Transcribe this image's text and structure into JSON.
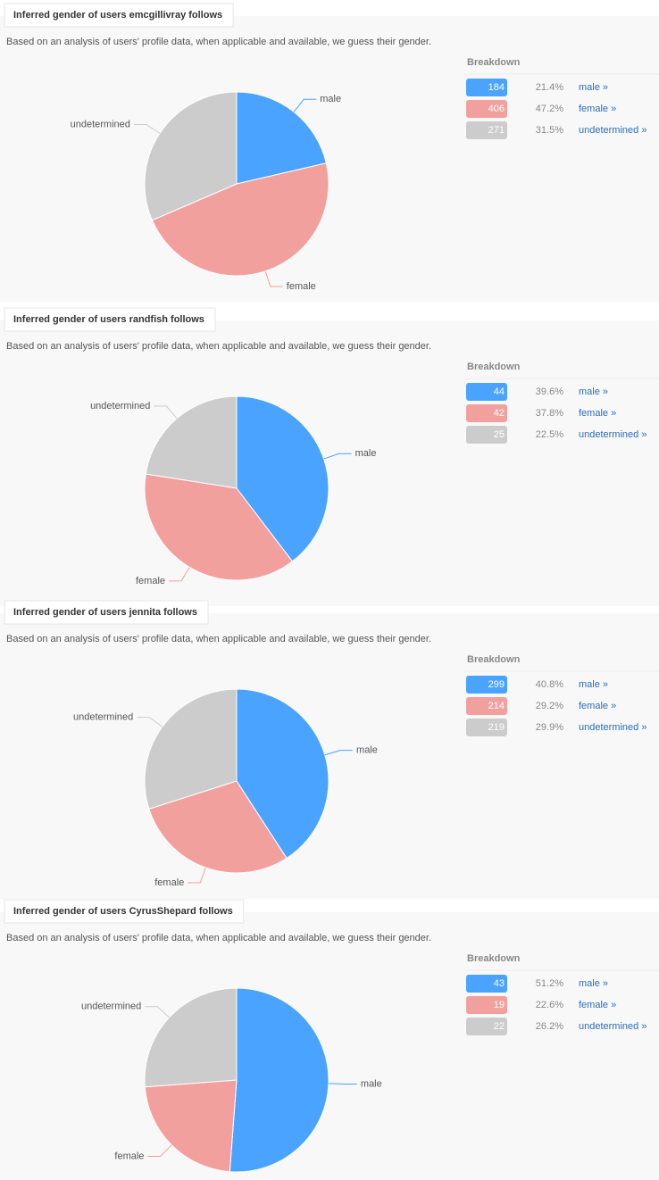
{
  "chart_data": [
    {
      "type": "pie",
      "title": "Inferred gender of users emcgillivray follows",
      "subtitle": "Based on an analysis of users' profile data, when applicable and available, we guess their gender.",
      "breakdown_heading": "Breakdown",
      "categories": [
        "male",
        "female",
        "undetermined"
      ],
      "values": [
        184,
        406,
        271
      ],
      "percent_labels": [
        "21.4%",
        "47.2%",
        "31.5%"
      ],
      "link_labels": [
        "male »",
        "female »",
        "undetermined »"
      ],
      "colors": [
        "#4aa3ff",
        "#f2a09e",
        "#cccccc"
      ]
    },
    {
      "type": "pie",
      "title": "Inferred gender of users randfish follows",
      "subtitle": "Based on an analysis of users' profile data, when applicable and available, we guess their gender.",
      "breakdown_heading": "Breakdown",
      "categories": [
        "male",
        "female",
        "undetermined"
      ],
      "values": [
        44,
        42,
        25
      ],
      "percent_labels": [
        "39.6%",
        "37.8%",
        "22.5%"
      ],
      "link_labels": [
        "male »",
        "female »",
        "undetermined »"
      ],
      "colors": [
        "#4aa3ff",
        "#f2a09e",
        "#cccccc"
      ]
    },
    {
      "type": "pie",
      "title": "Inferred gender of users jennita follows",
      "subtitle": "Based on an analysis of users' profile data, when applicable and available, we guess their gender.",
      "breakdown_heading": "Breakdown",
      "categories": [
        "male",
        "female",
        "undetermined"
      ],
      "values": [
        299,
        214,
        219
      ],
      "percent_labels": [
        "40.8%",
        "29.2%",
        "29.9%"
      ],
      "link_labels": [
        "male »",
        "female »",
        "undetermined »"
      ],
      "colors": [
        "#4aa3ff",
        "#f2a09e",
        "#cccccc"
      ]
    },
    {
      "type": "pie",
      "title": "Inferred gender of users CyrusShepard follows",
      "subtitle": "Based on an analysis of users' profile data, when applicable and available, we guess their gender.",
      "breakdown_heading": "Breakdown",
      "categories": [
        "male",
        "female",
        "undetermined"
      ],
      "values": [
        43,
        19,
        22
      ],
      "percent_labels": [
        "51.2%",
        "22.6%",
        "26.2%"
      ],
      "link_labels": [
        "male »",
        "female »",
        "undetermined »"
      ],
      "colors": [
        "#4aa3ff",
        "#f2a09e",
        "#cccccc"
      ]
    }
  ]
}
